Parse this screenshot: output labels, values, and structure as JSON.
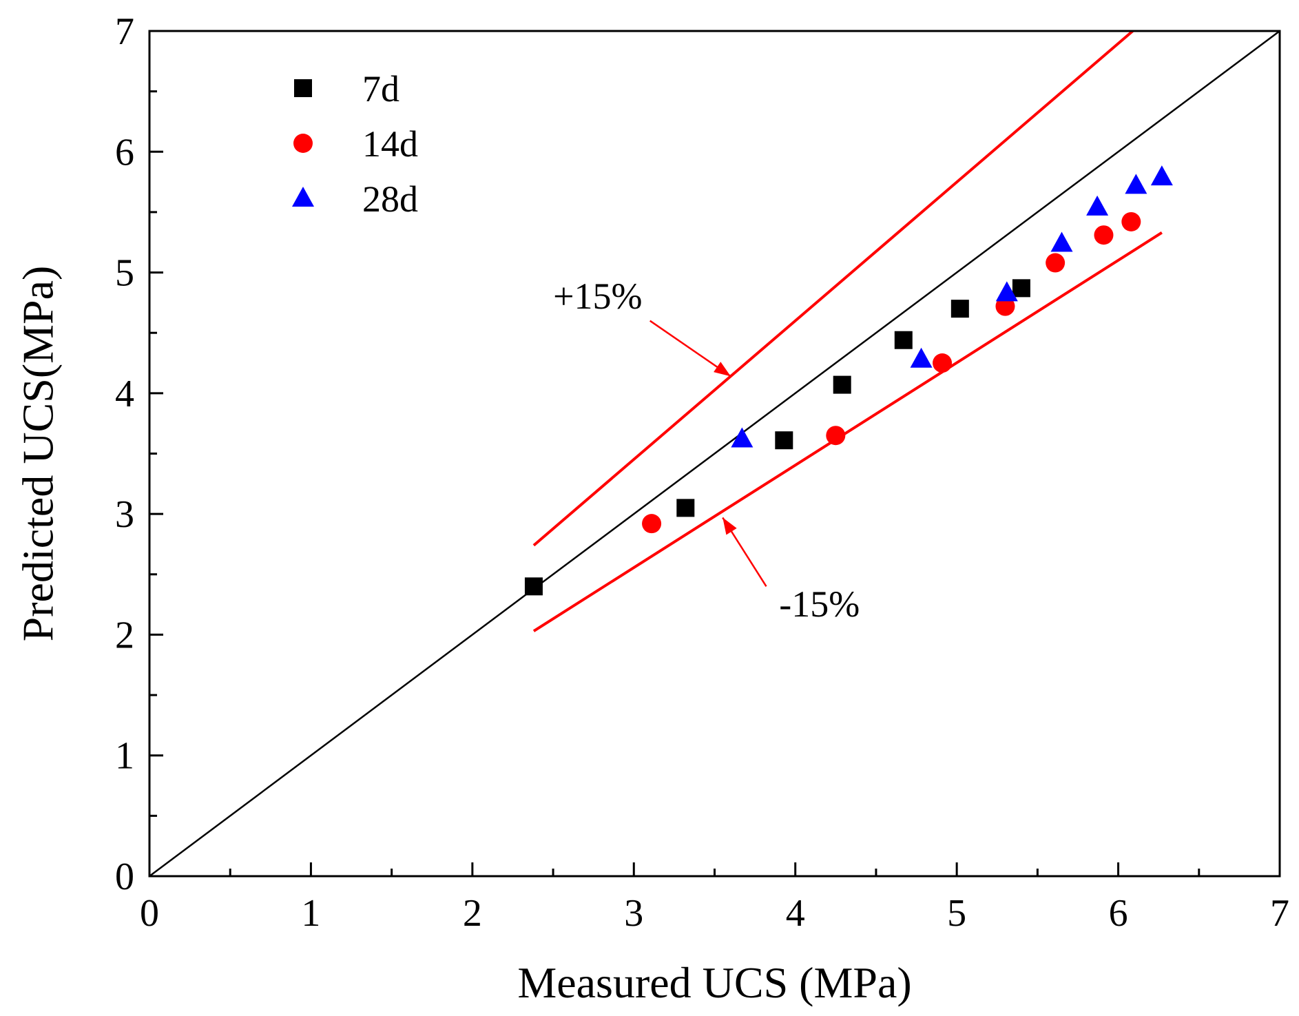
{
  "chart_data": {
    "type": "scatter",
    "title": "",
    "xlabel": "Measured UCS (MPa)",
    "ylabel": "Predicted UCS(MPa)",
    "xlim": [
      0,
      7
    ],
    "ylim": [
      0,
      7
    ],
    "xticks": [
      0,
      1,
      2,
      3,
      4,
      5,
      6,
      7
    ],
    "yticks": [
      0,
      1,
      2,
      3,
      4,
      5,
      6,
      7
    ],
    "xtick_labels": [
      "0",
      "1",
      "2",
      "3",
      "4",
      "5",
      "6",
      "7"
    ],
    "ytick_labels": [
      "0",
      "1",
      "2",
      "3",
      "4",
      "5",
      "6",
      "7"
    ],
    "minor_ticks": true,
    "grid": false,
    "legend_position": "top-left",
    "series": [
      {
        "name": "7d",
        "marker": "square",
        "color": "#000000",
        "points": [
          {
            "x": 2.38,
            "y": 2.4
          },
          {
            "x": 3.32,
            "y": 3.05
          },
          {
            "x": 3.93,
            "y": 3.61
          },
          {
            "x": 4.29,
            "y": 4.07
          },
          {
            "x": 4.67,
            "y": 4.44
          },
          {
            "x": 5.02,
            "y": 4.7
          },
          {
            "x": 5.4,
            "y": 4.87
          }
        ]
      },
      {
        "name": "14d",
        "marker": "circle",
        "color": "#ff0000",
        "points": [
          {
            "x": 3.11,
            "y": 2.92
          },
          {
            "x": 4.25,
            "y": 3.65
          },
          {
            "x": 4.91,
            "y": 4.25
          },
          {
            "x": 5.3,
            "y": 4.72
          },
          {
            "x": 5.61,
            "y": 5.08
          },
          {
            "x": 5.91,
            "y": 5.31
          },
          {
            "x": 6.08,
            "y": 5.42
          }
        ]
      },
      {
        "name": "28d",
        "marker": "triangle",
        "color": "#0000ff",
        "points": [
          {
            "x": 3.67,
            "y": 3.62
          },
          {
            "x": 4.78,
            "y": 4.28
          },
          {
            "x": 5.31,
            "y": 4.83
          },
          {
            "x": 5.65,
            "y": 5.24
          },
          {
            "x": 5.87,
            "y": 5.54
          },
          {
            "x": 6.11,
            "y": 5.72
          },
          {
            "x": 6.27,
            "y": 5.79
          }
        ]
      }
    ],
    "reference_lines": [
      {
        "name": "y=x",
        "color": "#000000",
        "from": {
          "x": 0,
          "y": 0
        },
        "to": {
          "x": 7,
          "y": 7
        }
      },
      {
        "name": "+15%",
        "color": "#ff0000",
        "from": {
          "x": 2.38,
          "y": 2.74
        },
        "to": {
          "x": 6.09,
          "y": 7.0
        }
      },
      {
        "name": "-15%",
        "color": "#ff0000",
        "from": {
          "x": 2.38,
          "y": 2.03
        },
        "to": {
          "x": 6.27,
          "y": 5.33
        }
      }
    ],
    "annotations": [
      {
        "text": "+15%",
        "text_at": {
          "x": 2.5,
          "y": 4.7
        },
        "arrow_from": {
          "x": 3.1,
          "y": 4.6
        },
        "arrow_to": {
          "x": 3.6,
          "y": 4.14
        }
      },
      {
        "text": "-15%",
        "text_at": {
          "x": 3.9,
          "y": 2.15
        },
        "arrow_from": {
          "x": 3.82,
          "y": 2.4
        },
        "arrow_to": {
          "x": 3.55,
          "y": 2.97
        }
      }
    ]
  }
}
